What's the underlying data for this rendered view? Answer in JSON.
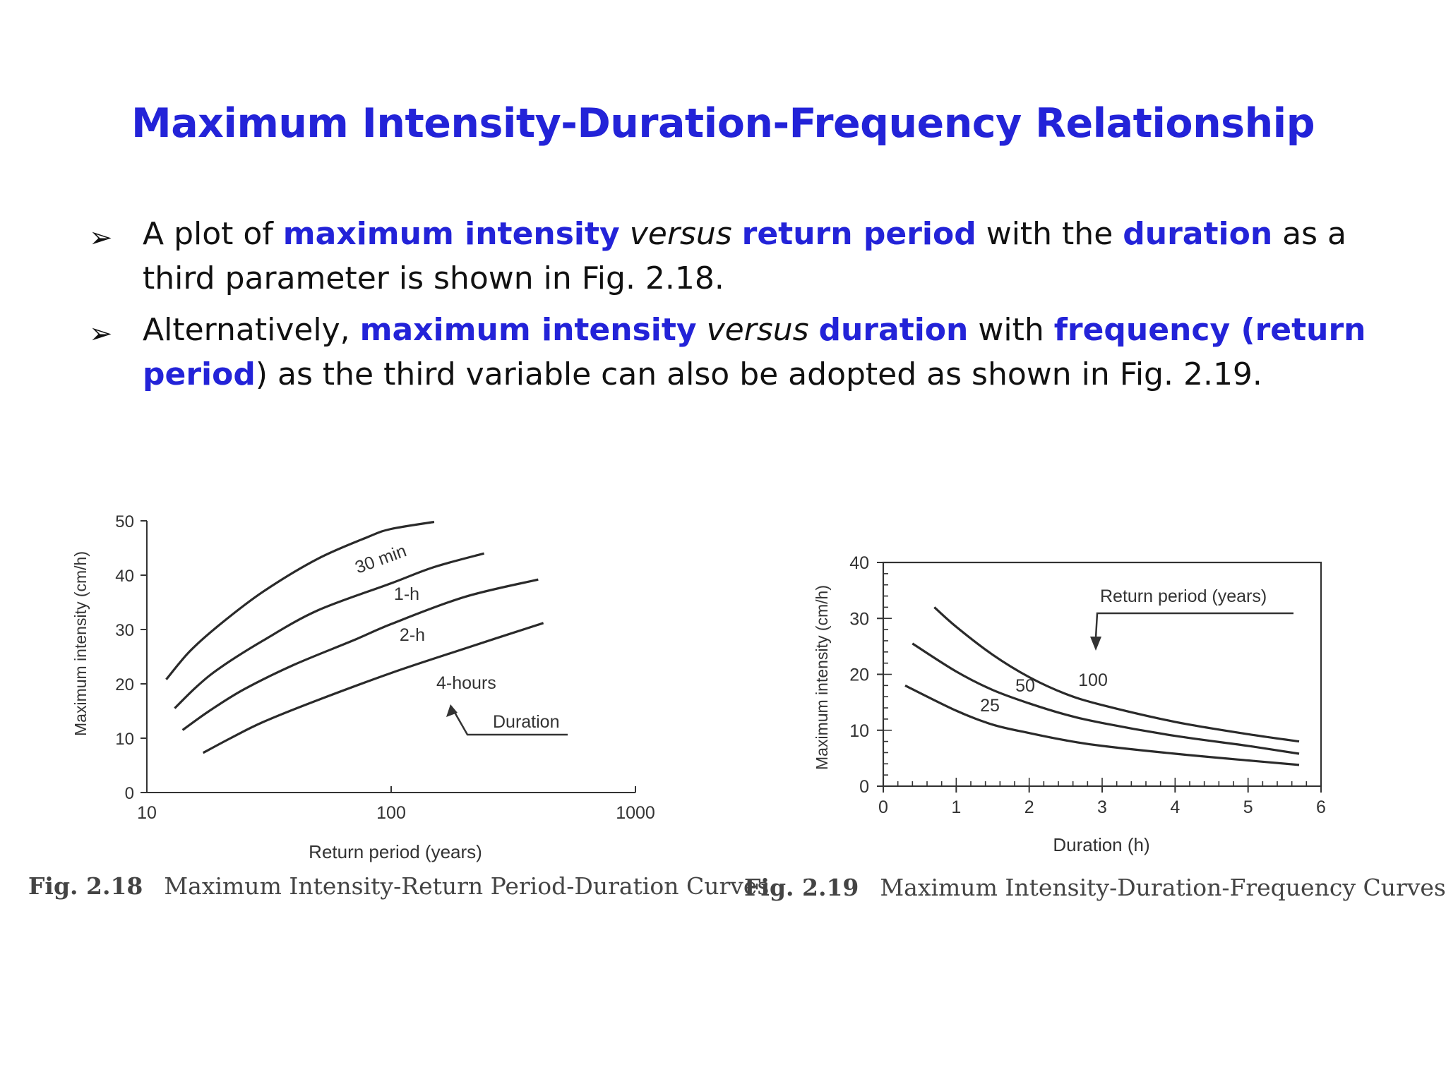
{
  "slide": {
    "title": "Maximum Intensity-Duration-Frequency Relationship",
    "bullets": [
      {
        "segments": [
          {
            "text": "A plot of ",
            "style": "normal"
          },
          {
            "text": "maximum intensity",
            "style": "highlight"
          },
          {
            "text": " versus ",
            "style": "italic"
          },
          {
            "text": "return period",
            "style": "highlight"
          },
          {
            "text": " with the ",
            "style": "normal"
          },
          {
            "text": "duration",
            "style": "highlight"
          },
          {
            "text": " as a third parameter is shown in Fig. 2.18.",
            "style": "normal"
          }
        ]
      },
      {
        "segments": [
          {
            "text": "Alternatively, ",
            "style": "normal"
          },
          {
            "text": "maximum intensity",
            "style": "highlight"
          },
          {
            "text": " versus ",
            "style": "italic"
          },
          {
            "text": "duration",
            "style": "highlight"
          },
          {
            "text": " with ",
            "style": "normal"
          },
          {
            "text": "frequency (return period",
            "style": "highlight"
          },
          {
            "text": ") as the third variable can also be adopted as shown in Fig. 2.19.",
            "style": "normal"
          }
        ]
      }
    ],
    "colors": {
      "accent": "#2323d8",
      "text": "#111111",
      "curve": "#2a2a2a"
    }
  },
  "chart_data": [
    {
      "type": "line",
      "id": "fig-2-18",
      "caption_number": "Fig. 2.18",
      "caption_text": "Maximum Intensity-Return Period-Duration Curves",
      "xlabel": "Return period (years)",
      "ylabel": "Maximum intensity (cm/h)",
      "xscale": "log",
      "xlim": [
        10,
        1000
      ],
      "ylim": [
        0,
        50
      ],
      "xticks": [
        10,
        100,
        1000
      ],
      "xtick_labels": [
        "10",
        "100",
        "1000"
      ],
      "yticks": [
        0,
        10,
        20,
        30,
        40,
        50
      ],
      "ytick_labels": [
        "0",
        "10",
        "20",
        "30",
        "40",
        "50"
      ],
      "annotation": {
        "text": "Duration"
      },
      "series": [
        {
          "name": "30 min",
          "x": [
            12,
            15,
            20,
            30,
            50,
            80,
            100,
            150
          ],
          "y": [
            20.8,
            26,
            31,
            37,
            43,
            47,
            48.5,
            49.8
          ]
        },
        {
          "name": "1-h",
          "x": [
            13,
            16,
            20,
            30,
            50,
            100,
            150,
            240
          ],
          "y": [
            15.5,
            19.5,
            23,
            28,
            33.5,
            38.5,
            41.5,
            44
          ]
        },
        {
          "name": "2-h",
          "x": [
            14,
            18,
            25,
            40,
            70,
            100,
            200,
            400
          ],
          "y": [
            11.5,
            15,
            19,
            23.5,
            28,
            31,
            36,
            39.2
          ]
        },
        {
          "name": "4-hours",
          "x": [
            17,
            22,
            30,
            50,
            100,
            200,
            420
          ],
          "y": [
            7.3,
            10,
            13,
            17,
            22,
            26.5,
            31.2
          ]
        }
      ]
    },
    {
      "type": "line",
      "id": "fig-2-19",
      "caption_number": "Fig. 2.19",
      "caption_text": "Maximum Intensity-Duration-Frequency Curves",
      "xlabel": "Duration (h)",
      "ylabel": "Maximum intensity (cm/h)",
      "xlim": [
        0,
        6
      ],
      "ylim": [
        0,
        40
      ],
      "xticks": [
        0,
        1,
        2,
        3,
        4,
        5,
        6
      ],
      "xtick_labels": [
        "0",
        "1",
        "2",
        "3",
        "4",
        "5",
        "6"
      ],
      "yticks": [
        0,
        10,
        20,
        30,
        40
      ],
      "ytick_labels": [
        "0",
        "10",
        "20",
        "30",
        "40"
      ],
      "annotation": {
        "text": "Return period (years)"
      },
      "series": [
        {
          "name": "100",
          "x": [
            0.7,
            1,
            1.5,
            2,
            2.5,
            3,
            4,
            5,
            5.7
          ],
          "y": [
            32,
            28.5,
            23.5,
            19.5,
            16.5,
            14.5,
            11.5,
            9.3,
            8
          ]
        },
        {
          "name": "50",
          "x": [
            0.4,
            1,
            1.5,
            2,
            2.5,
            3,
            4,
            5,
            5.7
          ],
          "y": [
            25.5,
            20.5,
            17.2,
            14.8,
            12.8,
            11.3,
            9,
            7.2,
            5.8
          ]
        },
        {
          "name": "25",
          "x": [
            0.3,
            1,
            1.5,
            2,
            2.5,
            3,
            4,
            5,
            5.7
          ],
          "y": [
            18,
            13.5,
            11,
            9.5,
            8.2,
            7.2,
            5.8,
            4.6,
            3.8
          ]
        }
      ]
    }
  ]
}
